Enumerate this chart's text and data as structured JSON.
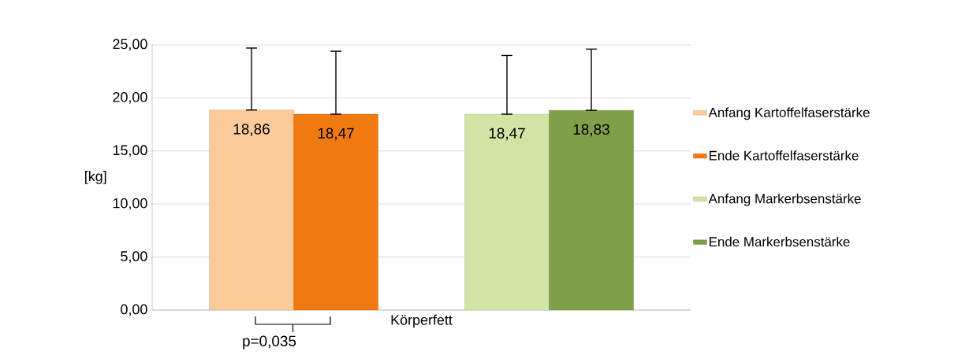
{
  "chart_data": {
    "type": "bar",
    "ylabel": "[kg]",
    "categories": [
      "Körperfett"
    ],
    "series": [
      {
        "name": "Anfang Kartoffelfaserstärke",
        "color": "#fccb99",
        "values": [
          18.86
        ],
        "value_labels": [
          "18,86"
        ],
        "errors": [
          [
            18.86,
            24.7
          ]
        ]
      },
      {
        "name": "Ende Kartoffelfaserstärke",
        "color": "#f07a12",
        "values": [
          18.47
        ],
        "value_labels": [
          "18,47"
        ],
        "errors": [
          [
            18.47,
            24.4
          ]
        ]
      },
      {
        "name": "Anfang Markerbsenstärke",
        "color": "#d2e3a6",
        "values": [
          18.47
        ],
        "value_labels": [
          "18,47"
        ],
        "errors": [
          [
            18.47,
            24.0
          ]
        ]
      },
      {
        "name": "Ende Markerbsenstärke",
        "color": "#7f9f48",
        "values": [
          18.83
        ],
        "value_labels": [
          "18,83"
        ],
        "errors": [
          [
            18.83,
            24.6
          ]
        ]
      }
    ],
    "ylim": [
      0,
      25
    ],
    "yticks": [
      {
        "value": 0,
        "label": "0,00"
      },
      {
        "value": 5,
        "label": "5,00"
      },
      {
        "value": 10,
        "label": "10,00"
      },
      {
        "value": 15,
        "label": "15,00"
      },
      {
        "value": 20,
        "label": "20,00"
      },
      {
        "value": 25,
        "label": "25,00"
      }
    ],
    "grid": "y",
    "legend": "right",
    "annotations": [
      "p=0,035"
    ]
  }
}
